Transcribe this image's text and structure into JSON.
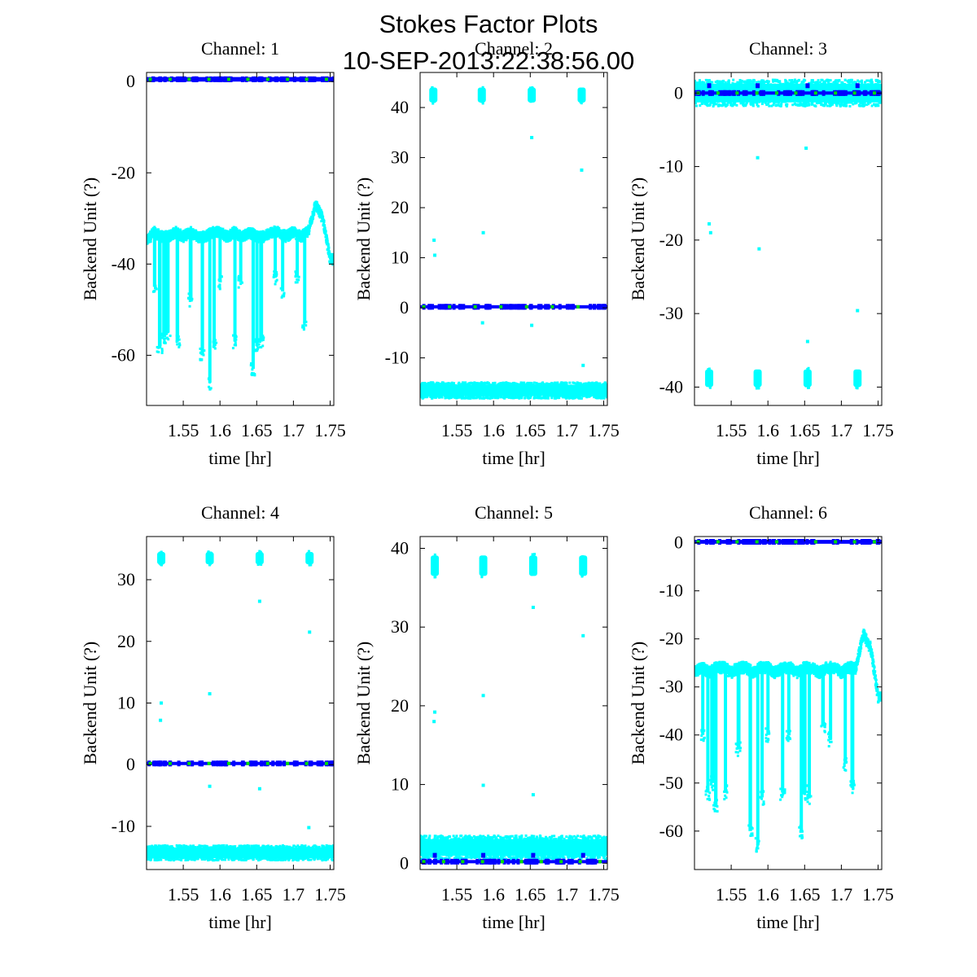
{
  "figure": {
    "title": "Stokes Factor Plots",
    "subtitle": "10-SEP-2013:22:38:56.00"
  },
  "colors": {
    "scatter": "#00ffff",
    "series_line": "#0000ff",
    "markers": "#00dd00",
    "axes": "#000000"
  },
  "chart_data": [
    {
      "type": "scatter",
      "title": "Channel: 1",
      "xlabel": "time [hr]",
      "ylabel": "Backend Unit (?)",
      "xlim": [
        1.5,
        1.755
      ],
      "ylim": [
        -71,
        2
      ],
      "xticks": [
        1.55,
        1.6,
        1.65,
        1.7,
        1.75
      ],
      "xtick_labels": [
        "1.55",
        "1.6",
        "1.65",
        "1.7",
        "1.75"
      ],
      "yticks": [
        0,
        -20,
        -40,
        -60
      ],
      "ytick_labels": [
        "0",
        "-20",
        "-40",
        "-60"
      ],
      "grid": false,
      "series": [
        {
          "style": "band",
          "color": "cyan",
          "x": [
            1.5,
            1.51,
            1.52,
            1.53,
            1.54,
            1.55,
            1.56,
            1.57,
            1.58,
            1.59,
            1.6,
            1.61,
            1.62,
            1.63,
            1.64,
            1.65,
            1.66,
            1.67,
            1.68,
            1.69,
            1.7,
            1.71,
            1.72,
            1.73,
            1.74,
            1.75
          ],
          "y": [
            -35,
            -33,
            -34,
            -34,
            -33,
            -34,
            -33,
            -34,
            -34,
            -33,
            -33,
            -34,
            -33,
            -34,
            -33,
            -34,
            -34,
            -33,
            -33,
            -34,
            -33,
            -34,
            -33,
            -27,
            -30,
            -39
          ],
          "spread": 1.2
        },
        {
          "style": "dips",
          "color": "cyan",
          "x": [
            1.511,
            1.518,
            1.524,
            1.529,
            1.542,
            1.56,
            1.576,
            1.586,
            1.592,
            1.6,
            1.62,
            1.628,
            1.645,
            1.65,
            1.656,
            1.675,
            1.685,
            1.705,
            1.715
          ],
          "y": [
            -45,
            -58,
            -56,
            -55,
            -57,
            -48,
            -60,
            -66,
            -58,
            -44,
            -57,
            -44,
            -63,
            -58,
            -57,
            -43,
            -46,
            -43,
            -53
          ]
        },
        {
          "style": "line",
          "color": "blue",
          "x": [
            1.5,
            1.755
          ],
          "y": [
            0.5,
            0.5
          ],
          "spread": 0.5
        },
        {
          "style": "markers",
          "color": "green",
          "x": [
            1.505,
            1.532,
            1.558,
            1.585,
            1.612,
            1.638,
            1.665,
            1.692,
            1.718,
            1.745
          ],
          "y": [
            0.5,
            0.5,
            0.5,
            0.5,
            0.5,
            0.5,
            0.5,
            0.5,
            0.5,
            0.5
          ]
        }
      ]
    },
    {
      "type": "scatter",
      "title": "Channel: 2",
      "xlabel": "time [hr]",
      "ylabel": "Backend Unit (?)",
      "xlim": [
        1.5,
        1.755
      ],
      "ylim": [
        -19.5,
        47
      ],
      "xticks": [
        1.55,
        1.6,
        1.65,
        1.7,
        1.75
      ],
      "xtick_labels": [
        "1.55",
        "1.6",
        "1.65",
        "1.7",
        "1.75"
      ],
      "yticks": [
        40,
        30,
        20,
        10,
        0,
        -10
      ],
      "ytick_labels": [
        "40",
        "30",
        "20",
        "10",
        "0",
        "-10"
      ],
      "grid": false,
      "series": [
        {
          "style": "band",
          "color": "cyan",
          "x": [
            1.5,
            1.755
          ],
          "y": [
            -16.5,
            -16.5
          ],
          "spread": 1.6
        },
        {
          "style": "clusters",
          "color": "cyan",
          "x": [
            1.518,
            1.584,
            1.652,
            1.72
          ],
          "y": [
            42.5,
            42.5,
            42.5,
            42.5
          ],
          "spread": 1.5
        },
        {
          "style": "outliers",
          "color": "cyan",
          "x": [
            1.519,
            1.52,
            1.586,
            1.585,
            1.652,
            1.652,
            1.72,
            1.722
          ],
          "y": [
            13.5,
            10.5,
            15,
            -3,
            34,
            -3.5,
            27.5,
            -11.5
          ]
        },
        {
          "style": "line",
          "color": "blue",
          "x": [
            1.5,
            1.755
          ],
          "y": [
            0.2,
            0.2
          ],
          "spread": 0.2
        },
        {
          "style": "markers",
          "color": "green",
          "x": [
            1.505,
            1.54,
            1.575,
            1.61,
            1.645,
            1.68,
            1.715
          ],
          "y": [
            0.2,
            0.2,
            0.2,
            0.2,
            0.2,
            0.2,
            0.2
          ]
        }
      ]
    },
    {
      "type": "scatter",
      "title": "Channel: 3",
      "xlabel": "time [hr]",
      "ylabel": "Backend Unit (?)",
      "xlim": [
        1.5,
        1.755
      ],
      "ylim": [
        -42.5,
        2.8
      ],
      "xticks": [
        1.55,
        1.6,
        1.65,
        1.7,
        1.75
      ],
      "xtick_labels": [
        "1.55",
        "1.6",
        "1.65",
        "1.7",
        "1.75"
      ],
      "yticks": [
        0,
        -10,
        -20,
        -30,
        -40
      ],
      "ytick_labels": [
        "0",
        "-10",
        "-20",
        "-30",
        "-40"
      ],
      "grid": false,
      "series": [
        {
          "style": "band",
          "color": "cyan",
          "x": [
            1.5,
            1.755
          ],
          "y": [
            0,
            0
          ],
          "spread": 1.8
        },
        {
          "style": "clusters",
          "color": "cyan",
          "x": [
            1.52,
            1.586,
            1.654,
            1.722
          ],
          "y": [
            -38.8,
            -38.8,
            -38.8,
            -38.8
          ],
          "spread": 1.2
        },
        {
          "style": "outliers",
          "color": "cyan",
          "x": [
            1.52,
            1.522,
            1.586,
            1.588,
            1.652,
            1.654,
            1.722
          ],
          "y": [
            -17.8,
            -19.0,
            -8.8,
            -21.2,
            -7.5,
            -33.8,
            -29.6
          ]
        },
        {
          "style": "line",
          "color": "blue",
          "x": [
            1.5,
            1.755
          ],
          "y": [
            0,
            0
          ],
          "spread": 0.1
        },
        {
          "style": "markers",
          "color": "green",
          "x": [
            1.505,
            1.532,
            1.558,
            1.585,
            1.612,
            1.638,
            1.665,
            1.692,
            1.718,
            1.745
          ],
          "y": [
            0,
            0,
            0,
            0,
            0,
            0,
            0,
            0,
            0,
            0
          ]
        },
        {
          "style": "spikes",
          "color": "blue",
          "x": [
            1.52,
            1.586,
            1.654,
            1.722
          ],
          "y": [
            1.0,
            1.0,
            1.0,
            1.0
          ]
        }
      ]
    },
    {
      "type": "scatter",
      "title": "Channel: 4",
      "xlabel": "time [hr]",
      "ylabel": "Backend Unit (?)",
      "xlim": [
        1.5,
        1.755
      ],
      "ylim": [
        -17,
        37
      ],
      "xticks": [
        1.55,
        1.6,
        1.65,
        1.7,
        1.75
      ],
      "xtick_labels": [
        "1.55",
        "1.6",
        "1.65",
        "1.7",
        "1.75"
      ],
      "yticks": [
        30,
        20,
        10,
        0,
        -10
      ],
      "ytick_labels": [
        "30",
        "20",
        "10",
        "0",
        "-10"
      ],
      "grid": false,
      "series": [
        {
          "style": "band",
          "color": "cyan",
          "x": [
            1.5,
            1.755
          ],
          "y": [
            -14.3,
            -14.3
          ],
          "spread": 1.2
        },
        {
          "style": "clusters",
          "color": "cyan",
          "x": [
            1.52,
            1.586,
            1.654,
            1.722
          ],
          "y": [
            33.5,
            33.5,
            33.5,
            33.5
          ],
          "spread": 1.0
        },
        {
          "style": "outliers",
          "color": "cyan",
          "x": [
            1.52,
            1.519,
            1.586,
            1.586,
            1.654,
            1.654,
            1.722,
            1.721
          ],
          "y": [
            10,
            7.2,
            11.5,
            -3.5,
            26.5,
            -3.9,
            21.5,
            -10.2
          ]
        },
        {
          "style": "line",
          "color": "blue",
          "x": [
            1.5,
            1.755
          ],
          "y": [
            0.2,
            0.2
          ],
          "spread": 0.2
        },
        {
          "style": "markers",
          "color": "green",
          "x": [
            1.505,
            1.532,
            1.558,
            1.585,
            1.612,
            1.638,
            1.665,
            1.692,
            1.718,
            1.745
          ],
          "y": [
            0.2,
            0.2,
            0.2,
            0.2,
            0.2,
            0.2,
            0.2,
            0.2,
            0.2,
            0.2
          ]
        }
      ]
    },
    {
      "type": "scatter",
      "title": "Channel: 5",
      "xlabel": "time [hr]",
      "ylabel": "Backend Unit (?)",
      "xlim": [
        1.5,
        1.755
      ],
      "ylim": [
        -0.8,
        41.5
      ],
      "xticks": [
        1.55,
        1.6,
        1.65,
        1.7,
        1.75
      ],
      "xtick_labels": [
        "1.55",
        "1.6",
        "1.65",
        "1.7",
        "1.75"
      ],
      "yticks": [
        40,
        30,
        20,
        10,
        0
      ],
      "ytick_labels": [
        "40",
        "30",
        "20",
        "10",
        "0"
      ],
      "grid": false,
      "series": [
        {
          "style": "band",
          "color": "cyan",
          "x": [
            1.5,
            1.755
          ],
          "y": [
            2.0,
            2.0
          ],
          "spread": 1.5
        },
        {
          "style": "clusters",
          "color": "cyan",
          "x": [
            1.52,
            1.586,
            1.654,
            1.722
          ],
          "y": [
            37.8,
            37.8,
            37.8,
            37.8
          ],
          "spread": 1.3
        },
        {
          "style": "outliers",
          "color": "cyan",
          "x": [
            1.52,
            1.519,
            1.586,
            1.586,
            1.654,
            1.654,
            1.722
          ],
          "y": [
            19.2,
            18.0,
            21.3,
            9.9,
            32.5,
            8.7,
            28.9
          ]
        },
        {
          "style": "line",
          "color": "blue",
          "x": [
            1.5,
            1.755
          ],
          "y": [
            0.2,
            0.2
          ],
          "spread": 0.1
        },
        {
          "style": "markers",
          "color": "green",
          "x": [
            1.505,
            1.532,
            1.558,
            1.585,
            1.612,
            1.638,
            1.665,
            1.692,
            1.718,
            1.745
          ],
          "y": [
            0.2,
            0.2,
            0.2,
            0.2,
            0.2,
            0.2,
            0.2,
            0.2,
            0.2,
            0.2
          ]
        },
        {
          "style": "spikes",
          "color": "blue",
          "x": [
            1.52,
            1.586,
            1.654,
            1.722
          ],
          "y": [
            1.0,
            1.0,
            1.0,
            1.0
          ]
        }
      ]
    },
    {
      "type": "scatter",
      "title": "Channel: 6",
      "xlabel": "time [hr]",
      "ylabel": "Backend Unit (?)",
      "xlim": [
        1.5,
        1.755
      ],
      "ylim": [
        -68,
        1.3
      ],
      "xticks": [
        1.55,
        1.6,
        1.65,
        1.7,
        1.75
      ],
      "xtick_labels": [
        "1.55",
        "1.6",
        "1.65",
        "1.7",
        "1.75"
      ],
      "yticks": [
        0,
        -10,
        -20,
        -30,
        -40,
        -50,
        -60
      ],
      "ytick_labels": [
        "0",
        "-10",
        "-20",
        "-30",
        "-40",
        "-50",
        "-60"
      ],
      "grid": false,
      "series": [
        {
          "style": "band",
          "color": "cyan",
          "x": [
            1.5,
            1.51,
            1.52,
            1.53,
            1.54,
            1.55,
            1.56,
            1.57,
            1.58,
            1.59,
            1.6,
            1.61,
            1.62,
            1.63,
            1.64,
            1.65,
            1.66,
            1.67,
            1.68,
            1.69,
            1.7,
            1.71,
            1.72,
            1.73,
            1.74,
            1.75
          ],
          "y": [
            -27,
            -26,
            -27,
            -26,
            -26,
            -27,
            -26,
            -26,
            -27,
            -26,
            -26,
            -27,
            -26,
            -26,
            -27,
            -26,
            -26,
            -27,
            -26,
            -26,
            -27,
            -26,
            -26,
            -19,
            -22,
            -32
          ],
          "spread": 1.2
        },
        {
          "style": "dips",
          "color": "cyan",
          "x": [
            1.511,
            1.518,
            1.524,
            1.529,
            1.542,
            1.56,
            1.576,
            1.586,
            1.592,
            1.6,
            1.62,
            1.628,
            1.645,
            1.65,
            1.656,
            1.675,
            1.685,
            1.705,
            1.715
          ],
          "y": [
            -40,
            -52,
            -50,
            -55,
            -52,
            -43,
            -60,
            -63,
            -53,
            -40,
            -52,
            -40,
            -60,
            -52,
            -53,
            -38,
            -41,
            -46,
            -51
          ]
        },
        {
          "style": "line",
          "color": "blue",
          "x": [
            1.5,
            1.755
          ],
          "y": [
            0.2,
            0.2
          ],
          "spread": 0.4
        },
        {
          "style": "markers",
          "color": "green",
          "x": [
            1.505,
            1.532,
            1.558,
            1.585,
            1.612,
            1.638,
            1.665,
            1.692,
            1.718,
            1.745
          ],
          "y": [
            0.2,
            0.2,
            0.2,
            0.2,
            0.2,
            0.2,
            0.2,
            0.2,
            0.2,
            0.2
          ]
        }
      ]
    }
  ]
}
